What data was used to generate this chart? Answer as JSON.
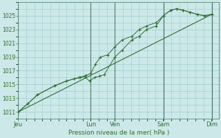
{
  "xlabel": "Pression niveau de la mer( hPa )",
  "background_color": "#cce8e8",
  "grid_color": "#99cccc",
  "line_color": "#2d6e2d",
  "marker_color": "#2d6e2d",
  "ylim": [
    1010.0,
    1027.0
  ],
  "yticks": [
    1011,
    1013,
    1015,
    1017,
    1019,
    1021,
    1023,
    1025
  ],
  "day_labels": [
    "Jeu",
    "Lun",
    "Ven",
    "Sam",
    "Dim"
  ],
  "day_positions": [
    0,
    3.0,
    4.0,
    6.0,
    8.0
  ],
  "xlim": [
    0,
    8.3
  ],
  "series1_x": [
    0.0,
    0.4,
    0.8,
    1.5,
    2.0,
    2.3,
    2.55,
    2.75,
    2.95,
    3.15,
    3.35,
    3.55,
    4.0,
    4.3,
    4.7,
    5.0,
    5.3,
    5.7,
    6.0,
    6.3,
    6.55,
    6.8,
    7.1,
    7.4,
    7.7,
    8.0
  ],
  "series1_y": [
    1011.0,
    1012.2,
    1013.5,
    1014.8,
    1015.5,
    1015.8,
    1016.0,
    1016.1,
    1015.5,
    1016.0,
    1016.2,
    1016.4,
    1019.0,
    1020.0,
    1021.5,
    1022.0,
    1023.0,
    1023.5,
    1025.0,
    1025.8,
    1026.0,
    1025.8,
    1025.5,
    1025.2,
    1025.0,
    1025.2
  ],
  "series2_x": [
    0.0,
    0.4,
    0.8,
    1.5,
    2.0,
    2.5,
    2.8,
    3.0,
    3.2,
    3.4,
    3.7,
    4.0,
    4.3,
    4.7,
    5.0,
    5.3,
    5.7,
    6.0,
    6.3,
    6.55,
    6.8,
    7.1,
    7.4,
    7.7,
    8.0
  ],
  "series2_y": [
    1011.0,
    1012.2,
    1013.5,
    1014.8,
    1015.5,
    1016.0,
    1016.3,
    1016.6,
    1018.0,
    1019.0,
    1019.3,
    1020.5,
    1021.5,
    1022.0,
    1023.0,
    1023.5,
    1024.0,
    1025.0,
    1025.8,
    1026.0,
    1025.8,
    1025.5,
    1025.2,
    1025.0,
    1025.2
  ],
  "series3_x": [
    0.0,
    8.0
  ],
  "series3_y": [
    1011.0,
    1025.2
  ]
}
